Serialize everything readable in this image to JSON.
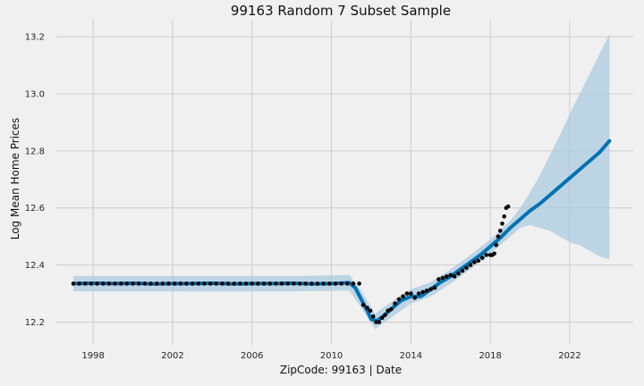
{
  "chart_data": {
    "type": "line",
    "title": "99163 Random 7 Subset Sample",
    "xlabel": "ZipCode: 99163 | Date",
    "ylabel": "Log Mean Home Prices",
    "xlim": [
      1996.1,
      2025.2
    ],
    "ylim": [
      12.12,
      13.26
    ],
    "x_ticks": [
      1998,
      2002,
      2006,
      2010,
      2014,
      2018,
      2022
    ],
    "x_tick_labels": [
      "1998",
      "2002",
      "2006",
      "2010",
      "2014",
      "2018",
      "2022"
    ],
    "y_ticks": [
      12.2,
      12.4,
      12.6,
      12.8,
      13.0,
      13.2
    ],
    "y_tick_labels": [
      "12.2",
      "12.4",
      "12.6",
      "12.8",
      "13.0",
      "13.2"
    ],
    "grid": true,
    "legend": "none",
    "colors": {
      "forecast": "#0072b2",
      "interval": "#a6c8e0",
      "actual": "#000000",
      "grid": "#cbcbcb",
      "background": "#f0f0f0"
    },
    "series": [
      {
        "role": "forecast",
        "x": [
          1997.0,
          1998.0,
          1999.0,
          2000.0,
          2001.0,
          2002.0,
          2003.0,
          2004.0,
          2005.0,
          2006.0,
          2007.0,
          2008.0,
          2009.0,
          2010.0,
          2010.9,
          2011.2,
          2011.5,
          2011.8,
          2012.0,
          2012.3,
          2012.6,
          2013.0,
          2013.5,
          2014.0,
          2014.5,
          2015.0,
          2015.5,
          2016.0,
          2016.5,
          2017.0,
          2017.5,
          2018.0,
          2018.5,
          2019.0,
          2019.5,
          2020.0,
          2020.5,
          2021.0,
          2021.5,
          2022.0,
          2022.5,
          2023.0,
          2023.5,
          2024.0
        ],
        "y": [
          12.335,
          12.336,
          12.335,
          12.336,
          12.334,
          12.335,
          12.335,
          12.336,
          12.334,
          12.335,
          12.335,
          12.336,
          12.334,
          12.335,
          12.338,
          12.32,
          12.28,
          12.24,
          12.21,
          12.205,
          12.22,
          12.245,
          12.275,
          12.29,
          12.29,
          12.315,
          12.34,
          12.36,
          12.385,
          12.41,
          12.435,
          12.465,
          12.495,
          12.53,
          12.56,
          12.59,
          12.615,
          12.645,
          12.675,
          12.705,
          12.735,
          12.765,
          12.795,
          12.835
        ]
      },
      {
        "role": "uncertainty_upper",
        "x": [
          1997.0,
          2000.0,
          2004.0,
          2008.0,
          2010.9,
          2011.5,
          2012.2,
          2013.0,
          2014.0,
          2015.0,
          2016.0,
          2017.0,
          2018.0,
          2019.0,
          2019.5,
          2020.0,
          2020.5,
          2021.0,
          2021.5,
          2022.0,
          2022.5,
          2023.0,
          2023.5,
          2024.0
        ],
        "y": [
          12.362,
          12.361,
          12.362,
          12.361,
          12.365,
          12.31,
          12.23,
          12.27,
          12.315,
          12.34,
          12.385,
          12.435,
          12.49,
          12.555,
          12.6,
          12.655,
          12.715,
          12.785,
          12.855,
          12.93,
          13.0,
          13.07,
          13.14,
          13.21
        ]
      },
      {
        "role": "uncertainty_lower",
        "x": [
          1997.0,
          2000.0,
          2004.0,
          2008.0,
          2010.9,
          2011.5,
          2012.2,
          2013.0,
          2014.0,
          2015.0,
          2016.0,
          2017.0,
          2018.0,
          2019.0,
          2019.5,
          2020.0,
          2020.5,
          2021.0,
          2021.5,
          2022.0,
          2022.5,
          2023.0,
          2023.5,
          2024.0
        ],
        "y": [
          12.308,
          12.308,
          12.307,
          12.308,
          12.31,
          12.25,
          12.175,
          12.215,
          12.265,
          12.29,
          12.335,
          12.385,
          12.44,
          12.5,
          12.53,
          12.54,
          12.53,
          12.52,
          12.5,
          12.48,
          12.47,
          12.45,
          12.43,
          12.42
        ]
      },
      {
        "role": "actual",
        "x": [
          1997.0,
          1997.3,
          1997.6,
          1997.9,
          1998.2,
          1998.5,
          1998.8,
          1999.1,
          1999.4,
          1999.7,
          2000.0,
          2000.3,
          2000.6,
          2000.9,
          2001.2,
          2001.5,
          2001.8,
          2002.1,
          2002.4,
          2002.7,
          2003.0,
          2003.3,
          2003.6,
          2003.9,
          2004.2,
          2004.5,
          2004.8,
          2005.1,
          2005.4,
          2005.7,
          2006.0,
          2006.3,
          2006.6,
          2006.9,
          2007.2,
          2007.5,
          2007.8,
          2008.1,
          2008.4,
          2008.7,
          2009.0,
          2009.3,
          2009.6,
          2009.9,
          2010.2,
          2010.5,
          2010.8,
          2011.1,
          2011.4,
          2011.6,
          2011.8,
          2011.95,
          2012.1,
          2012.25,
          2012.4,
          2012.55,
          2012.7,
          2012.85,
          2013.0,
          2013.2,
          2013.4,
          2013.6,
          2013.8,
          2014.0,
          2014.2,
          2014.4,
          2014.6,
          2014.8,
          2015.0,
          2015.2,
          2015.4,
          2015.6,
          2015.8,
          2016.0,
          2016.2,
          2016.4,
          2016.6,
          2016.8,
          2017.0,
          2017.2,
          2017.4,
          2017.6,
          2017.8,
          2018.0,
          2018.1,
          2018.2,
          2018.3,
          2018.4,
          2018.5,
          2018.6,
          2018.7,
          2018.8,
          2018.9
        ],
        "y": [
          12.335,
          12.335,
          12.335,
          12.335,
          12.335,
          12.335,
          12.335,
          12.335,
          12.335,
          12.335,
          12.335,
          12.335,
          12.335,
          12.335,
          12.335,
          12.335,
          12.335,
          12.335,
          12.335,
          12.335,
          12.335,
          12.335,
          12.335,
          12.335,
          12.335,
          12.335,
          12.335,
          12.335,
          12.335,
          12.335,
          12.335,
          12.335,
          12.335,
          12.335,
          12.335,
          12.335,
          12.335,
          12.335,
          12.335,
          12.335,
          12.335,
          12.335,
          12.335,
          12.335,
          12.335,
          12.335,
          12.335,
          12.335,
          12.335,
          12.26,
          12.25,
          12.24,
          12.22,
          12.2,
          12.2,
          12.215,
          12.225,
          12.24,
          12.245,
          12.265,
          12.28,
          12.29,
          12.3,
          12.3,
          12.285,
          12.3,
          12.305,
          12.31,
          12.315,
          12.32,
          12.35,
          12.355,
          12.36,
          12.365,
          12.36,
          12.37,
          12.38,
          12.39,
          12.4,
          12.41,
          12.415,
          12.425,
          12.435,
          12.435,
          12.435,
          12.44,
          12.47,
          12.5,
          12.52,
          12.545,
          12.57,
          12.6,
          12.605
        ]
      }
    ]
  }
}
